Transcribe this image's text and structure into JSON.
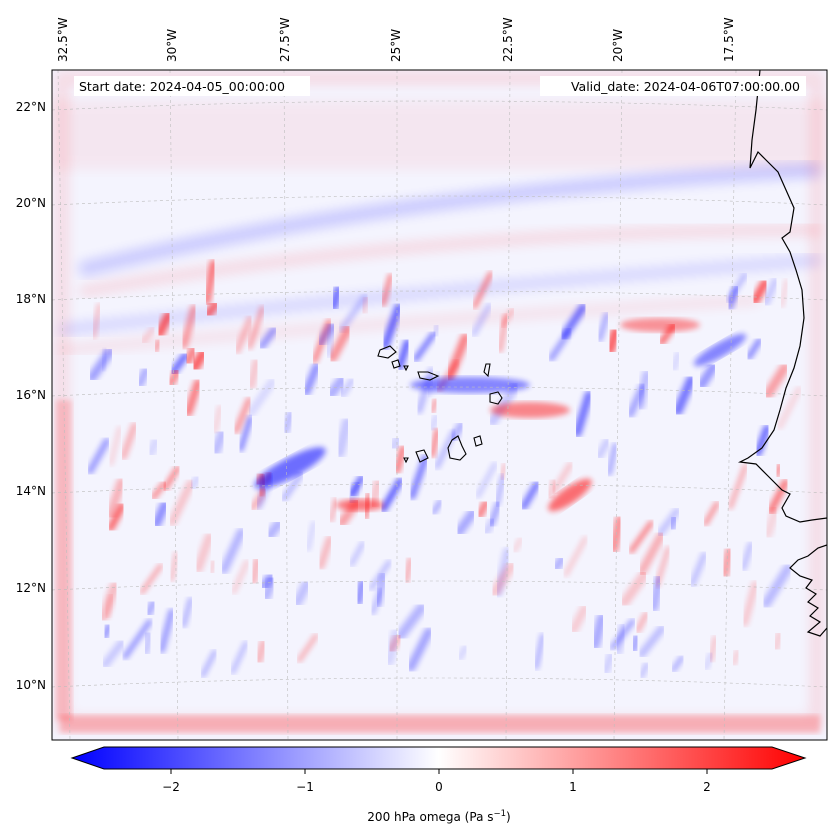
{
  "map": {
    "start_label": "Start date: 2024-04-05_00:00:00",
    "valid_label": "Valid_date: 2024-04-06T07:00:00.00",
    "lon_ticks": [
      "32.5°W",
      "30°W",
      "27.5°W",
      "25°W",
      "22.5°W",
      "20°W",
      "17.5°W"
    ],
    "lat_ticks": [
      "22°N",
      "20°N",
      "18°N",
      "16°N",
      "14°N",
      "12°N",
      "10°N"
    ],
    "colorbar": {
      "label_text": "200 hPa omega (Pa s",
      "label_exp": "−1",
      "label_close": ")",
      "ticks": [
        "−2",
        "−1",
        "0",
        "1",
        "2"
      ],
      "vmin": -2.5,
      "vmax": 2.5,
      "colors": {
        "negative": "#0000ff",
        "zero": "#ffffff",
        "positive": "#ff0000"
      }
    }
  }
}
